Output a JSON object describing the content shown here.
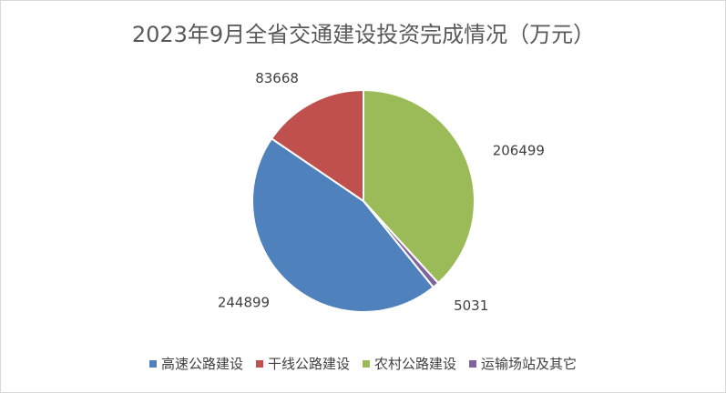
{
  "chart_data": {
    "type": "pie",
    "title": "2023年9月全省交通建设投资完成情况（万元）",
    "categories": [
      "高速公路建设",
      "干线公路建设",
      "农村公路建设",
      "运输场站及其它"
    ],
    "values": [
      244899,
      83668,
      206499,
      5031
    ],
    "colors": [
      "#4f81bd",
      "#c0504d",
      "#9bbb59",
      "#8064a2"
    ],
    "legend": "bottom"
  }
}
